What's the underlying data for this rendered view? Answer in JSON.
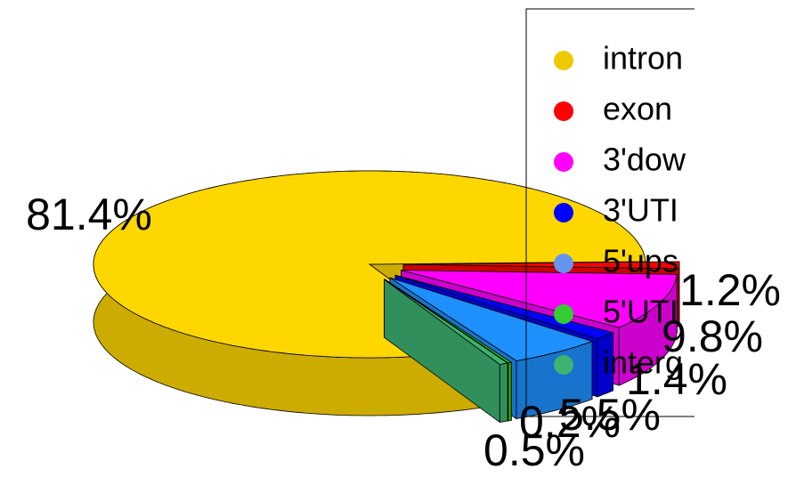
{
  "chart_data": {
    "type": "pie3d",
    "categories": [
      "intron",
      "exon",
      "3'dow",
      "3'UTI",
      "5'ups",
      "5'UTI",
      "interg"
    ],
    "values": [
      81.4,
      1.2,
      9.8,
      1.4,
      5.5,
      0.2,
      0.5
    ],
    "value_labels": [
      "81.4%",
      "1.2%",
      "9.8%",
      "1.4%",
      "5.5%",
      "0.2%",
      "0.5%"
    ],
    "colors": [
      "#FFD700",
      "#FF0000",
      "#FF00FF",
      "#0000FF",
      "#1E90FF",
      "#33CC00",
      "#3CB371"
    ],
    "legend_colors": [
      "#EEC900",
      "#FF0000",
      "#FF00FF",
      "#0000FF",
      "#6495ED",
      "#33CC33",
      "#3CB371"
    ],
    "legend": "right"
  }
}
